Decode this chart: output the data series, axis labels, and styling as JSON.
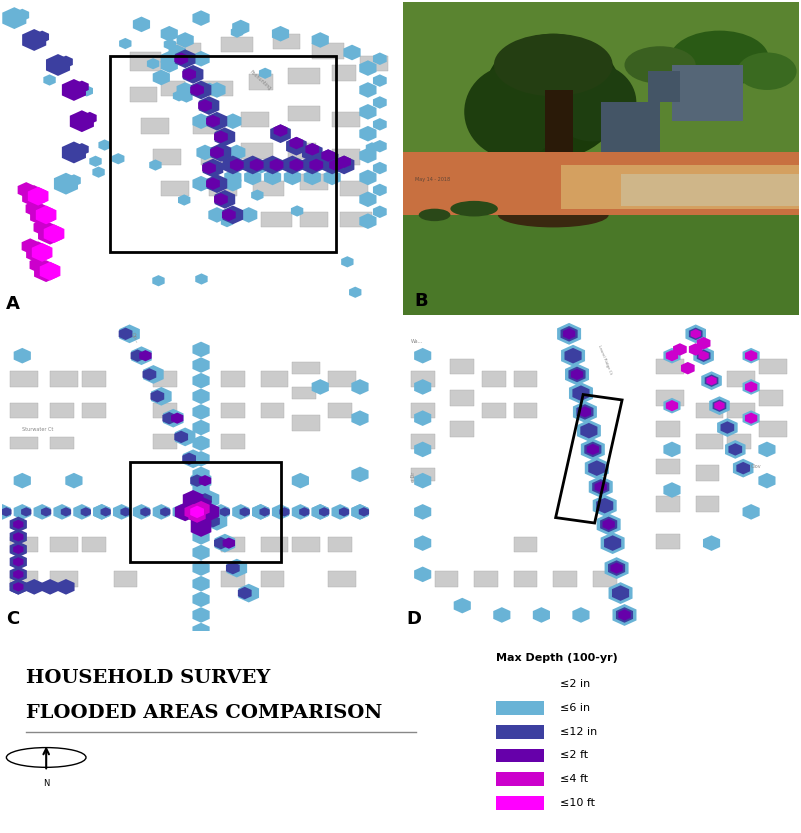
{
  "title_line1": "HOUSEHOLD SURVEY",
  "title_line2": "FLOODED AREAS COMPARISON",
  "legend_title": "Max Depth (100-yr)",
  "legend_items": [
    {
      "label": "≤2 in",
      "color": null
    },
    {
      "label": "≤6 in",
      "color": "#69B3D6"
    },
    {
      "label": "≤12 in",
      "color": "#3C3FA0"
    },
    {
      "label": "≤2 ft",
      "color": "#6600AA"
    },
    {
      "label": "≤4 ft",
      "color": "#CC00CC"
    },
    {
      "label": "≤10 ft",
      "color": "#FF00FF"
    }
  ],
  "map_bg": "#E8E8E4",
  "road_color": "#FFFFFF",
  "building_color": "#CBCBCB",
  "figsize": [
    8.01,
    8.33
  ],
  "dpi": 100
}
